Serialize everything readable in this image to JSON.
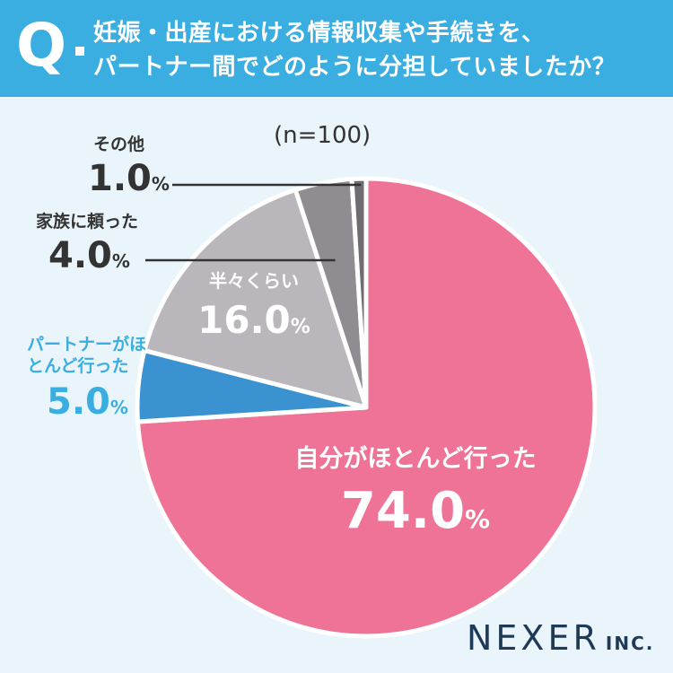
{
  "question": {
    "mark": "Q",
    "line1": "妊娠・出産における情報収集や手続きを、",
    "line2": "パートナー間でどのように分担していましたか？"
  },
  "sample_note": "(n=100)",
  "colors": {
    "header": "#3aaee0",
    "background": "#e9f4fb",
    "self": "#ee7396",
    "partner": "#3a93d0",
    "half": "#b9b7bb",
    "family": "#8f8d92",
    "other": "#6e6c71"
  },
  "chart_data": {
    "type": "pie",
    "unit": "%",
    "slices": [
      {
        "label": "自分がほとんど行った",
        "value": 74.0,
        "value_text": "74.0",
        "color": "#ee7396"
      },
      {
        "label": "パートナーがほとんど行った",
        "value": 5.0,
        "value_text": "5.0",
        "color": "#3a93d0"
      },
      {
        "label": "半々くらい",
        "value": 16.0,
        "value_text": "16.0",
        "color": "#b9b7bb"
      },
      {
        "label": "家族に頼った",
        "value": 4.0,
        "value_text": "4.0",
        "color": "#8f8d92"
      },
      {
        "label": "その他",
        "value": 1.0,
        "value_text": "1.0",
        "color": "#6e6c71"
      }
    ]
  },
  "logo": {
    "name": "NEXER",
    "suffix": "INC."
  }
}
